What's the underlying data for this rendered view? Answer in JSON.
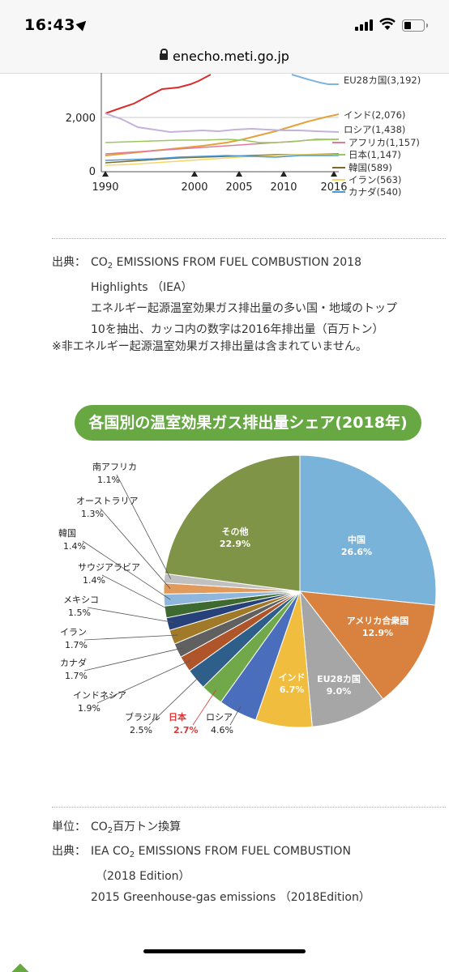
{
  "status_bar": {
    "time": "16:43"
  },
  "browser": {
    "url": "enecho.meti.go.jp"
  },
  "line_chart": {
    "type": "line",
    "x_ticks": [
      "1990",
      "2000",
      "2005",
      "2010",
      "2016"
    ],
    "y_ticks": [
      "2,000",
      "0"
    ],
    "legend": [
      {
        "label": "EU28カ国(3,192)",
        "color": "#7fb5dc"
      },
      {
        "label": "インド(2,076)",
        "color": "#e3a23a"
      },
      {
        "label": "ロシア(1,438)",
        "color": "#c4b3d9"
      },
      {
        "label": "アフリカ(1,157)",
        "color": "#e07a9a"
      },
      {
        "label": "日本(1,147)",
        "color": "#9ac85e"
      },
      {
        "label": "韓国(589)",
        "color": "#7a6a2a"
      },
      {
        "label": "イラン(563)",
        "color": "#f2d86a"
      },
      {
        "label": "カナダ(540)",
        "color": "#4a9bd6"
      }
    ]
  },
  "source1": {
    "label": "出典：",
    "line1_pre": "CO",
    "line1_sub": "2",
    "line1_post": " EMISSIONS FROM FUEL COMBUSTION 2018",
    "line2": "Highlights （IEA）",
    "line3": "エネルギー起源温室効果ガス排出量の多い国・地域のトップ",
    "line4": "10を抽出、カッコ内の数字は2016年排出量（百万トン）",
    "note": "※非エネルギー起源温室効果ガス排出量は含まれていません。"
  },
  "pie_title": "各国別の温室効果ガス排出量シェア(2018年)",
  "chart_data": {
    "type": "pie",
    "title": "各国別の温室効果ガス排出量シェア(2018年)",
    "slices": [
      {
        "label": "中国",
        "value": 26.6,
        "text": "26.6%",
        "color": "#7ab3da",
        "pos": "inside"
      },
      {
        "label": "アメリカ合衆国",
        "value": 12.9,
        "text": "12.9%",
        "color": "#d9823f",
        "pos": "inside"
      },
      {
        "label": "EU28カ国",
        "value": 9.0,
        "text": "9.0%",
        "color": "#a6a6a6",
        "pos": "inside"
      },
      {
        "label": "インド",
        "value": 6.7,
        "text": "6.7%",
        "color": "#f0bd3f",
        "pos": "inside"
      },
      {
        "label": "ロシア",
        "value": 4.6,
        "text": "4.6%",
        "color": "#4a6ebc",
        "pos": "outside"
      },
      {
        "label": "日本",
        "value": 2.7,
        "text": "2.7%",
        "color": "#70a84a",
        "pos": "outside",
        "highlight": true
      },
      {
        "label": "ブラジル",
        "value": 2.5,
        "text": "2.5%",
        "color": "#2e5f8a",
        "pos": "outside"
      },
      {
        "label": "インドネシア",
        "value": 1.9,
        "text": "1.9%",
        "color": "#b0552a",
        "pos": "outside"
      },
      {
        "label": "カナダ",
        "value": 1.7,
        "text": "1.7%",
        "color": "#606060",
        "pos": "outside"
      },
      {
        "label": "イラン",
        "value": 1.7,
        "text": "1.7%",
        "color": "#a07a28",
        "pos": "outside"
      },
      {
        "label": "メキシコ",
        "value": 1.5,
        "text": "1.5%",
        "color": "#27427a",
        "pos": "outside"
      },
      {
        "label": "サウジアラビア",
        "value": 1.4,
        "text": "1.4%",
        "color": "#3e6a30",
        "pos": "outside"
      },
      {
        "label": "韓国",
        "value": 1.4,
        "text": "1.4%",
        "color": "#8fb6dc",
        "pos": "outside"
      },
      {
        "label": "オーストラリア",
        "value": 1.3,
        "text": "1.3%",
        "color": "#e29a5a",
        "pos": "outside"
      },
      {
        "label": "南アフリカ",
        "value": 1.1,
        "text": "1.1%",
        "color": "#c0c0c0",
        "pos": "outside"
      },
      {
        "label": "その他",
        "value": 22.9,
        "text": "22.9%",
        "color": "#7f9446",
        "pos": "inside"
      }
    ]
  },
  "source2": {
    "unit_label": "単位：",
    "unit_pre": "CO",
    "unit_sub": "2",
    "unit_post": "百万トン換算",
    "label": "出典：",
    "line1_pre": "IEA CO",
    "line1_sub": "2",
    "line1_post": " EMISSIONS FROM FUEL COMBUSTION",
    "line2": "（2018 Edition）",
    "line3": "2015 Greenhouse-gas emissions （2018Edition）"
  }
}
